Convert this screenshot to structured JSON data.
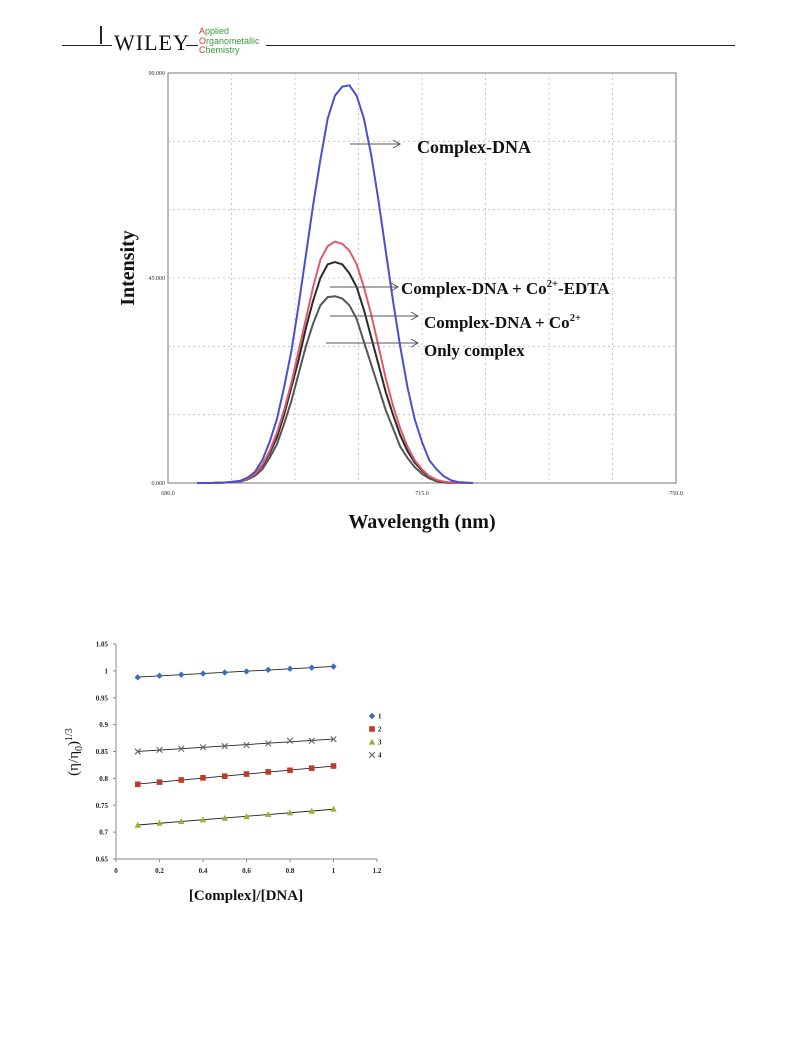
{
  "header": {
    "publisher": "WILEY",
    "journal_first": "A",
    "journal_line1": "pplied",
    "journal_second": "O",
    "journal_line2": "rganometallic",
    "journal_third": "C",
    "journal_line3": "hemistry"
  },
  "chart_data": [
    {
      "type": "line",
      "xlabel": "Wavelength (nm)",
      "ylabel": "Intensity",
      "xlim": [
        680,
        750
      ],
      "ylim": [
        0,
        90
      ],
      "x_ticks": [
        "680.0",
        "715.0",
        "750.0"
      ],
      "y_ticks": [
        "0.000",
        "45.000",
        "90.000"
      ],
      "grid": true,
      "series": [
        {
          "name": "Complex-DNA",
          "color": "#4a4fcf",
          "x": [
            684,
            686,
            688,
            690,
            691,
            692,
            693,
            694,
            695,
            696,
            697,
            698,
            699,
            700,
            701,
            702,
            703,
            704,
            705,
            706,
            707,
            708,
            709,
            710,
            711,
            712,
            713,
            714,
            715,
            716,
            717,
            718,
            719,
            720,
            722
          ],
          "y": [
            0,
            0,
            0.1,
            0.5,
            1.2,
            2.5,
            5,
            9,
            14,
            21,
            29,
            39,
            50,
            61,
            71,
            80,
            85,
            87,
            87.3,
            85,
            80,
            72,
            62,
            51,
            40,
            30,
            21,
            14,
            9,
            5,
            3,
            1.5,
            0.6,
            0.2,
            0
          ]
        },
        {
          "name": "Complex-DNA + Co²⁺-EDTA",
          "color": "#e05a6a",
          "x": [
            684,
            686,
            688,
            690,
            691,
            692,
            693,
            694,
            695,
            696,
            697,
            698,
            699,
            700,
            701,
            702,
            703,
            704,
            705,
            706,
            707,
            708,
            709,
            710,
            711,
            712,
            713,
            714,
            715,
            716,
            717,
            718,
            719,
            720,
            722
          ],
          "y": [
            0,
            0,
            0.1,
            0.4,
            1,
            2,
            4,
            7,
            11,
            16,
            22,
            29,
            36,
            43,
            49,
            52,
            53,
            52.5,
            51,
            48,
            43,
            37,
            30,
            23,
            17,
            12,
            8,
            5,
            3,
            1.5,
            0.7,
            0.3,
            0.1,
            0,
            0
          ]
        },
        {
          "name": "Complex-DNA + Co²⁺",
          "color": "#2a2a2a",
          "x": [
            684,
            686,
            688,
            690,
            691,
            692,
            693,
            694,
            695,
            696,
            697,
            698,
            699,
            700,
            701,
            702,
            703,
            704,
            705,
            706,
            707,
            708,
            709,
            710,
            711,
            712,
            713,
            714,
            715,
            716,
            717,
            718,
            719,
            720,
            722
          ],
          "y": [
            0,
            0,
            0.1,
            0.4,
            1,
            2,
            3.8,
            6.5,
            10,
            15,
            21,
            27,
            34,
            40,
            45,
            48,
            48.5,
            48,
            46,
            43,
            38,
            32,
            26,
            20,
            15,
            10.5,
            7,
            4.5,
            2.7,
            1.4,
            0.6,
            0.2,
            0.1,
            0,
            0
          ]
        },
        {
          "name": "Only complex",
          "color": "#555555",
          "x": [
            684,
            686,
            688,
            690,
            691,
            692,
            693,
            694,
            695,
            696,
            697,
            698,
            699,
            700,
            701,
            702,
            703,
            704,
            705,
            706,
            707,
            708,
            709,
            710,
            711,
            712,
            713,
            714,
            715,
            716,
            717,
            718,
            719,
            720,
            722
          ],
          "y": [
            0,
            0,
            0.1,
            0.3,
            0.8,
            1.6,
            3,
            5.5,
            8.5,
            13,
            18,
            24,
            30,
            35,
            39,
            40.8,
            41,
            40.5,
            39,
            36,
            31,
            26,
            21,
            16,
            12,
            8,
            5.5,
            3.5,
            2,
            1,
            0.4,
            0.1,
            0,
            0,
            0
          ]
        }
      ],
      "annotations": [
        {
          "label": "Complex-DNA",
          "series": 0
        },
        {
          "label_main": "Complex-DNA + Co",
          "label_sup": "2+",
          "label_tail": "-EDTA",
          "series": 1
        },
        {
          "label_main": "Complex-DNA + Co",
          "label_sup": "2+",
          "label_tail": "",
          "series": 2
        },
        {
          "label": "Only complex",
          "series": 3
        }
      ]
    },
    {
      "type": "scatter",
      "xlabel": "[Complex]/[DNA]",
      "ylabel_main": "(η/η",
      "ylabel_sub": "0",
      "ylabel_close": ")",
      "ylabel_sup": "1/3",
      "xlim": [
        0,
        1.2
      ],
      "ylim": [
        0.65,
        1.05
      ],
      "x_ticks": [
        "0",
        "0.2",
        "0.4",
        "0.6",
        "0.8",
        "1",
        "1.2"
      ],
      "y_ticks": [
        "0.65",
        "0.7",
        "0.75",
        "0.8",
        "0.85",
        "0.9",
        "0.95",
        "1",
        "1.05"
      ],
      "legend_position": "right",
      "trendlines": true,
      "x": [
        0.1,
        0.2,
        0.3,
        0.4,
        0.5,
        0.6,
        0.7,
        0.8,
        0.9,
        1.0
      ],
      "series": [
        {
          "name": "1",
          "marker": "diamond",
          "color": "#3a6fc0",
          "values": [
            0.988,
            0.991,
            0.993,
            0.995,
            0.997,
            0.999,
            1.002,
            1.004,
            1.006,
            1.008
          ]
        },
        {
          "name": "2",
          "marker": "square",
          "color": "#c0392b",
          "values": [
            0.789,
            0.793,
            0.797,
            0.801,
            0.804,
            0.808,
            0.812,
            0.815,
            0.819,
            0.823
          ]
        },
        {
          "name": "3",
          "marker": "triangle",
          "color": "#9ab03a",
          "values": [
            0.713,
            0.717,
            0.72,
            0.723,
            0.726,
            0.729,
            0.733,
            0.736,
            0.739,
            0.743
          ]
        },
        {
          "name": "4",
          "marker": "x",
          "color": "#666666",
          "values": [
            0.85,
            0.853,
            0.855,
            0.858,
            0.86,
            0.862,
            0.865,
            0.87,
            0.87,
            0.873
          ]
        }
      ]
    }
  ]
}
